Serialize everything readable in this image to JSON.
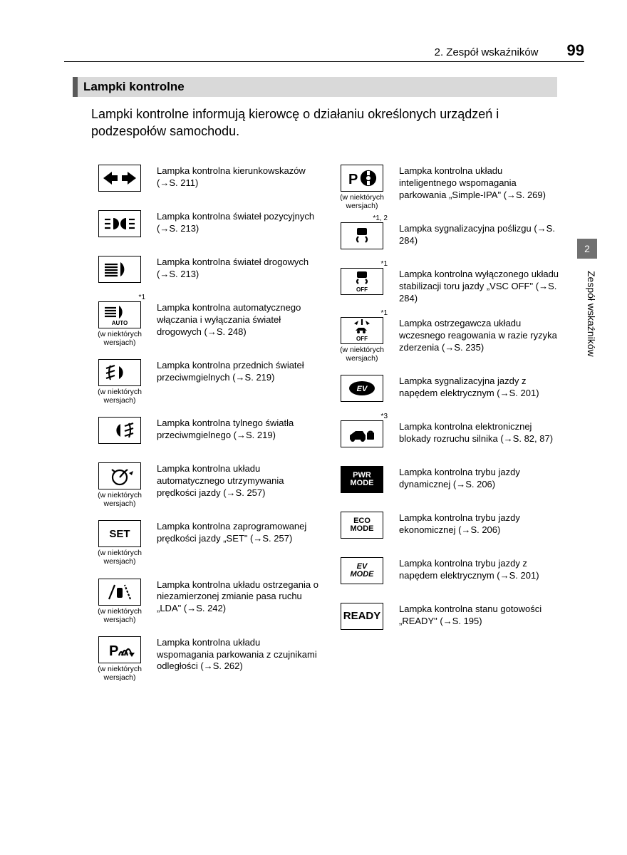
{
  "header": {
    "chapter": "2. Zespół wskaźników",
    "page_number": "99"
  },
  "side_tab": {
    "number": "2",
    "label": "Zespół wskaźników"
  },
  "section_title": "Lampki kontrolne",
  "intro": "Lampki kontrolne informują kierowcę o działaniu określonych urządzeń i podzespołów samochodu.",
  "some_versions": "(w niektórych wersjach)",
  "left": [
    {
      "icon": "turn-signals",
      "desc": "Lampka kontrolna kierunkowskazów (→S. 211)"
    },
    {
      "icon": "position-lights",
      "desc": "Lampka kontrolna świateł pozycyjnych (→S. 213)"
    },
    {
      "icon": "high-beam",
      "desc": "Lampka kontrolna świateł drogowych (→S. 213)"
    },
    {
      "icon": "auto-high-beam",
      "sup": "*1",
      "note": true,
      "desc": "Lampka kontrolna automatycznego włączania i wyłączania świateł drogowych (→S. 248)"
    },
    {
      "icon": "front-fog",
      "note": true,
      "desc": "Lampka kontrolna przednich świateł przeciwmgielnych (→S. 219)"
    },
    {
      "icon": "rear-fog",
      "desc": "Lampka kontrolna tylnego światła przeciwmgielnego (→S. 219)"
    },
    {
      "icon": "cruise",
      "note": true,
      "desc": "Lampka kontrolna układu automatycznego utrzymywania prędkości jazdy (→S. 257)"
    },
    {
      "icon": "set",
      "note": true,
      "desc": "Lampka kontrolna zaprogramowanej prędkości jazdy „SET\" (→S. 257)"
    },
    {
      "icon": "lda",
      "note": true,
      "desc": "Lampka kontrolna układu ostrzegania o niezamierzonej zmianie pasa ruchu „LDA\" (→S. 242)"
    },
    {
      "icon": "park-assist",
      "note": true,
      "desc": "Lampka kontrolna układu wspomagania parkowania z czujnikami odległości (→S. 262)"
    }
  ],
  "right": [
    {
      "icon": "ipa",
      "note": true,
      "desc": "Lampka kontrolna układu inteligentnego wspomagania parkowania „Simple-IPA\" (→S. 269)"
    },
    {
      "icon": "slip",
      "sup": "*1, 2",
      "desc": "Lampka sygnalizacyjna poślizgu (→S. 284)"
    },
    {
      "icon": "vsc-off",
      "sup": "*1",
      "desc": "Lampka kontrolna wyłączonego układu stabilizacji toru jazdy „VSC OFF\" (→S. 284)"
    },
    {
      "icon": "pcs-off",
      "sup": "*1",
      "note": true,
      "desc": "Lampka ostrzegawcza układu wczesnego reagowania w razie ryzyka zderzenia (→S. 235)"
    },
    {
      "icon": "ev",
      "desc": "Lampka sygnalizacyjna jazdy z napędem elektrycznym (→S. 201)"
    },
    {
      "icon": "immobilizer",
      "sup": "*3",
      "desc": "Lampka kontrolna elektronicznej blokady rozruchu silnika (→S. 82, 87)"
    },
    {
      "icon": "pwr-mode",
      "filled": true,
      "desc": "Lampka kontrolna trybu jazdy dynamicznej (→S. 206)"
    },
    {
      "icon": "eco-mode",
      "desc": "Lampka kontrolna trybu jazdy ekonomicznej (→S. 206)"
    },
    {
      "icon": "ev-mode",
      "desc": "Lampka kontrolna trybu jazdy z napędem elektrycznym (→S. 201)"
    },
    {
      "icon": "ready",
      "desc": "Lampka kontrolna stanu gotowości „READY\" (→S. 195)"
    }
  ],
  "icon_text": {
    "set": "SET",
    "pwr-mode": "PWR\nMODE",
    "eco-mode": "ECO\nMODE",
    "ev-mode": "EV\nMODE",
    "ready": "READY"
  },
  "colors": {
    "page_bg": "#ffffff",
    "title_bar_bg": "#d9d9d9",
    "title_bar_accent": "#5a5a5a",
    "tab_bg": "#707070",
    "text": "#000000"
  }
}
